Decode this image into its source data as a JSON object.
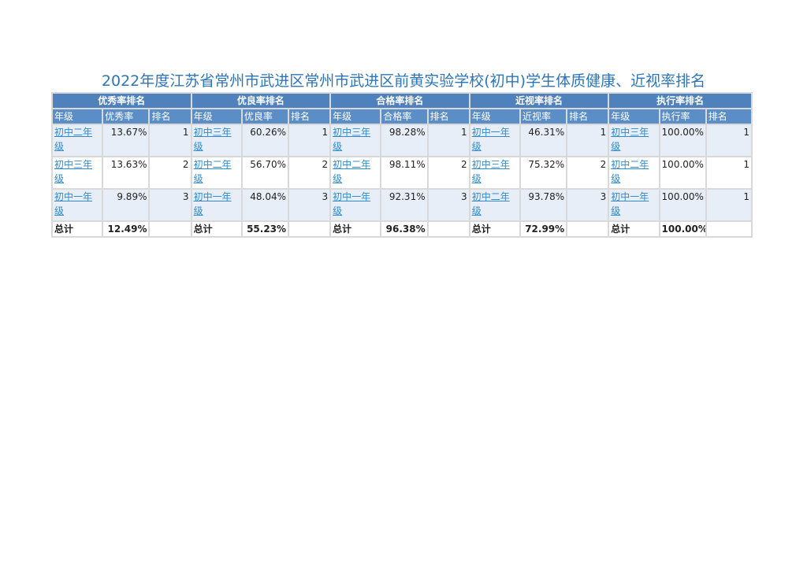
{
  "title": "2022年度江苏省常州市武进区常州市武进区前黄实验学校(初中)学生体质健康、近视率排名",
  "sections": [
    {
      "group": "优秀率排名",
      "headers": [
        "年级",
        "优秀率",
        "排名"
      ],
      "rows": [
        {
          "grade": "初中二年级",
          "value": "13.67%",
          "rank": "1"
        },
        {
          "grade": "初中三年级",
          "value": "13.63%",
          "rank": "2"
        },
        {
          "grade": "初中一年级",
          "value": "9.89%",
          "rank": "3"
        }
      ],
      "total_label": "总计",
      "total_value": "12.49%"
    },
    {
      "group": "优良率排名",
      "headers": [
        "年级",
        "优良率",
        "排名"
      ],
      "rows": [
        {
          "grade": "初中三年级",
          "value": "60.26%",
          "rank": "1"
        },
        {
          "grade": "初中二年级",
          "value": "56.70%",
          "rank": "2"
        },
        {
          "grade": "初中一年级",
          "value": "48.04%",
          "rank": "3"
        }
      ],
      "total_label": "总计",
      "total_value": "55.23%"
    },
    {
      "group": "合格率排名",
      "headers": [
        "年级",
        "合格率",
        "排名"
      ],
      "rows": [
        {
          "grade": "初中三年级",
          "value": "98.28%",
          "rank": "1"
        },
        {
          "grade": "初中二年级",
          "value": "98.11%",
          "rank": "2"
        },
        {
          "grade": "初中一年级",
          "value": "92.31%",
          "rank": "3"
        }
      ],
      "total_label": "总计",
      "total_value": "96.38%"
    },
    {
      "group": "近视率排名",
      "headers": [
        "年级",
        "近视率",
        "排名"
      ],
      "rows": [
        {
          "grade": "初中一年级",
          "value": "46.31%",
          "rank": "1"
        },
        {
          "grade": "初中三年级",
          "value": "75.32%",
          "rank": "2"
        },
        {
          "grade": "初中二年级",
          "value": "93.78%",
          "rank": "3"
        }
      ],
      "total_label": "总计",
      "total_value": "72.99%"
    },
    {
      "group": "执行率排名",
      "headers": [
        "年级",
        "执行率",
        "排名"
      ],
      "rows": [
        {
          "grade": "初中三年级",
          "value": "100.00%",
          "rank": "1"
        },
        {
          "grade": "初中二年级",
          "value": "100.00%",
          "rank": "1"
        },
        {
          "grade": "初中一年级",
          "value": "100.00%",
          "rank": "1"
        }
      ],
      "total_label": "总计",
      "total_value": "100.00%"
    }
  ]
}
